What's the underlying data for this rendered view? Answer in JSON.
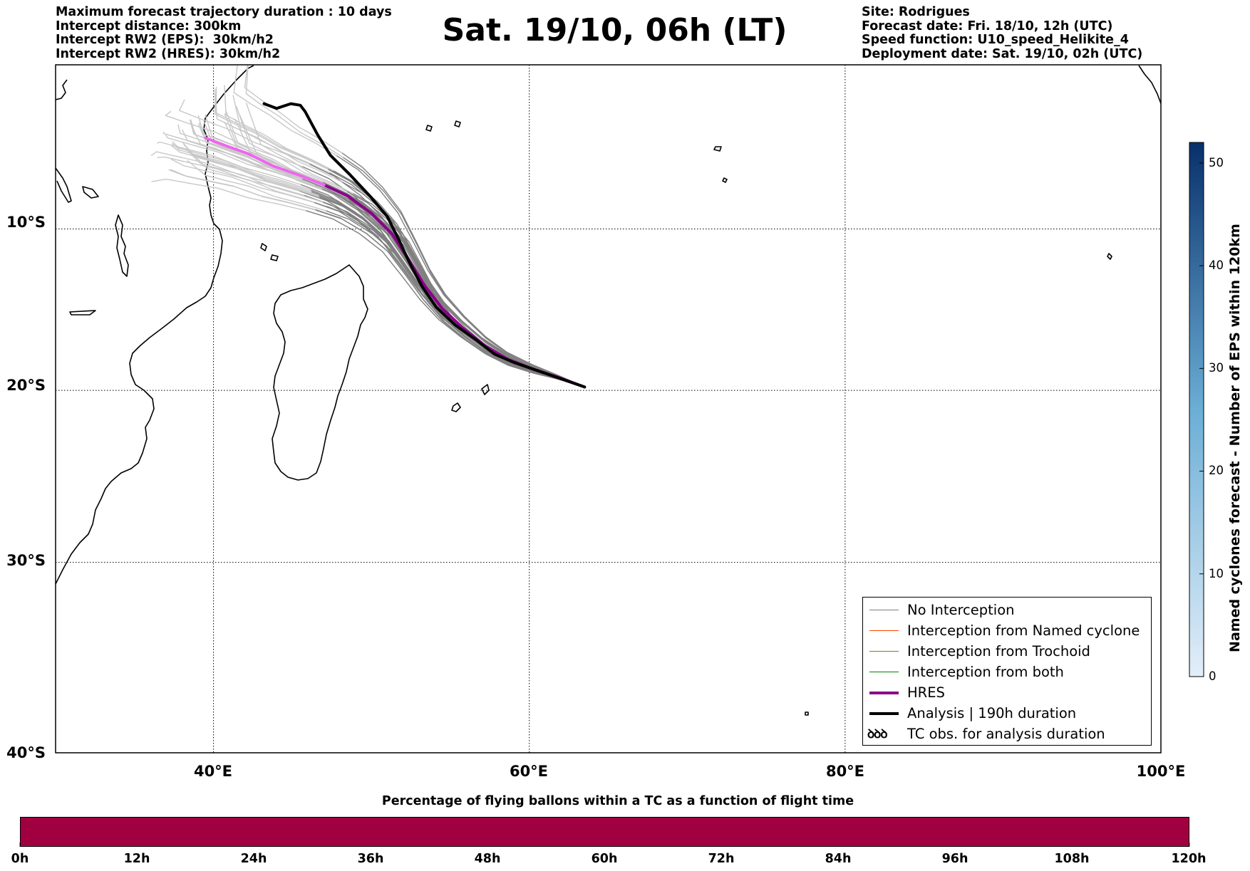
{
  "header": {
    "left_lines": [
      "Maximum forecast trajectory duration : 10 days",
      "Intercept distance: 300km",
      "Intercept RW2 (EPS):  30km/h2",
      "Intercept RW2 (HRES): 30km/h2"
    ],
    "title": "Sat. 19/10, 06h (LT)",
    "right_lines": [
      "Site: Rodrigues",
      "Forecast date: Fri. 18/10, 12h (UTC)",
      "Speed function: U10_speed_Helikite_4",
      "Deployment date: Sat. 19/10, 02h (UTC)"
    ]
  },
  "map": {
    "lat_labels": [
      "10°S",
      "20°S",
      "30°S",
      "40°S"
    ],
    "lon_labels": [
      "40°E",
      "60°E",
      "80°E",
      "100°E"
    ],
    "lat_values": [
      -10,
      -20,
      -30,
      -40
    ],
    "lon_values": [
      40,
      60,
      80,
      100
    ],
    "lon_range": [
      30,
      100
    ],
    "lat_range": [
      -40,
      0.5
    ],
    "grid": "dotted",
    "colors": {
      "eps_no_interception": "#808080",
      "eps_late": "#c8c8c8",
      "hres": "#8b008b",
      "hres_late": "#ee66ee",
      "analysis": "#000000"
    },
    "analysis_track": [
      [
        63.5,
        -19.8
      ],
      [
        62,
        -19.3
      ],
      [
        60.5,
        -18.8
      ],
      [
        59,
        -18.3
      ],
      [
        57.8,
        -17.8
      ],
      [
        56.6,
        -16.9
      ],
      [
        55.3,
        -16.0
      ],
      [
        54.1,
        -14.9
      ],
      [
        53.2,
        -13.6
      ],
      [
        52.4,
        -12.1
      ],
      [
        51.7,
        -10.6
      ],
      [
        51.0,
        -9.2
      ],
      [
        49.9,
        -7.9
      ],
      [
        48.6,
        -6.5
      ],
      [
        47.4,
        -5.3
      ],
      [
        46.6,
        -4.0
      ],
      [
        45.8,
        -2.5
      ],
      [
        45.5,
        -2.1
      ],
      [
        44.9,
        -2.0
      ],
      [
        44.0,
        -2.3
      ],
      [
        43.2,
        -2.0
      ]
    ],
    "hres_track": [
      [
        63.5,
        -19.8
      ],
      [
        61.8,
        -19.2
      ],
      [
        60.2,
        -18.7
      ],
      [
        58.6,
        -18.1
      ],
      [
        57.2,
        -17.3
      ],
      [
        55.8,
        -16.2
      ],
      [
        54.5,
        -15.0
      ],
      [
        53.4,
        -13.6
      ],
      [
        52.4,
        -12.0
      ],
      [
        51.3,
        -10.3
      ],
      [
        50.0,
        -9.0
      ],
      [
        48.5,
        -7.9
      ],
      [
        47.0,
        -7.2
      ],
      [
        45.5,
        -6.6
      ],
      [
        43.8,
        -6.0
      ],
      [
        42.2,
        -5.2
      ],
      [
        40.8,
        -4.7
      ],
      [
        39.5,
        -4.2
      ]
    ],
    "hres_late_from_index": 12
  },
  "legend": {
    "items": [
      {
        "label": "No Interception",
        "color": "#808080",
        "weight": "thin"
      },
      {
        "label": "Interception from Named cyclone",
        "color": "#ff4500",
        "weight": "thin"
      },
      {
        "label": "Interception from Trochoid",
        "color": "#808000",
        "weight": "thin"
      },
      {
        "label": "Interception from both",
        "color": "#008000",
        "weight": "thin"
      },
      {
        "label": "HRES",
        "color": "#8b008b",
        "weight": "thick"
      },
      {
        "label": "Analysis | 190h duration",
        "color": "#000000",
        "weight": "thick"
      },
      {
        "label": "TC obs. for analysis duration",
        "symbol": "ꝺꝺꝺ",
        "color": "#000000",
        "weight": "symbol"
      }
    ]
  },
  "colorbar": {
    "label": "Named cyclones forecast - Number of EPS within 120km",
    "ticks": [
      "0",
      "10",
      "20",
      "30",
      "40",
      "50"
    ],
    "tick_values": [
      0,
      10,
      20,
      30,
      40,
      50
    ],
    "vmax": 52,
    "color_low": "#e3eef9",
    "color_high": "#08306b"
  },
  "bottom": {
    "title": "Percentage of flying ballons within a TC as a function of flight time",
    "bar_color": "#a00040",
    "ticks": [
      "0h",
      "12h",
      "24h",
      "36h",
      "48h",
      "60h",
      "72h",
      "84h",
      "96h",
      "108h",
      "120h"
    ],
    "tick_values": [
      0,
      12,
      24,
      36,
      48,
      60,
      72,
      84,
      96,
      108,
      120
    ]
  }
}
